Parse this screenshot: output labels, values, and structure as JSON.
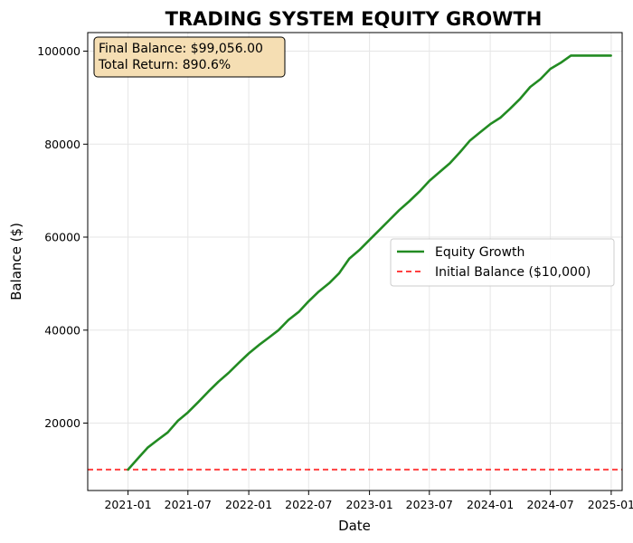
{
  "chart_data": {
    "type": "line",
    "title": "TRADING SYSTEM EQUITY GROWTH",
    "xlabel": "Date",
    "ylabel": "Balance ($)",
    "xlim": [
      "2020-09-01",
      "2025-02-03"
    ],
    "ylim": [
      5500,
      104000
    ],
    "grid": true,
    "x_ticks": [
      "2021-01",
      "2021-07",
      "2022-01",
      "2022-07",
      "2023-01",
      "2023-07",
      "2024-01",
      "2024-07",
      "2025-01"
    ],
    "y_ticks": [
      20000,
      40000,
      60000,
      80000,
      100000
    ],
    "legend_position": "center-right",
    "annotation": {
      "line1": "Final Balance: $99,056.00",
      "line2": "Total Return: 890.6%"
    },
    "series": [
      {
        "name": "Equity Growth",
        "color": "#228B22",
        "style": "solid",
        "x": [
          "2021-01-01",
          "2021-02-01",
          "2021-03-01",
          "2021-04-01",
          "2021-05-01",
          "2021-06-01",
          "2021-07-01",
          "2021-08-01",
          "2021-09-01",
          "2021-10-01",
          "2021-11-01",
          "2021-12-01",
          "2022-01-01",
          "2022-02-01",
          "2022-03-01",
          "2022-04-01",
          "2022-05-01",
          "2022-06-01",
          "2022-07-01",
          "2022-08-01",
          "2022-09-01",
          "2022-10-01",
          "2022-11-01",
          "2022-12-01",
          "2023-01-01",
          "2023-02-01",
          "2023-03-01",
          "2023-04-01",
          "2023-05-01",
          "2023-06-01",
          "2023-07-01",
          "2023-08-01",
          "2023-09-01",
          "2023-10-01",
          "2023-11-01",
          "2023-12-01",
          "2024-01-01",
          "2024-02-01",
          "2024-03-01",
          "2024-04-01",
          "2024-05-01",
          "2024-06-01",
          "2024-07-01",
          "2024-08-01",
          "2024-09-01",
          "2024-10-01",
          "2024-11-01",
          "2024-12-01",
          "2024-12-31"
        ],
        "values": [
          10000,
          12500,
          14700,
          16400,
          18000,
          20500,
          22300,
          24500,
          26800,
          28900,
          30800,
          32900,
          35000,
          36800,
          38300,
          40000,
          42200,
          43900,
          46200,
          48300,
          50100,
          52200,
          55400,
          57200,
          59400,
          61600,
          63600,
          65800,
          67700,
          69800,
          72100,
          74000,
          75900,
          78200,
          80800,
          82500,
          84300,
          85700,
          87600,
          89800,
          92300,
          94000,
          96200,
          97500,
          99056,
          99056,
          99056,
          99056,
          99056
        ]
      },
      {
        "name": "Initial Balance ($10,000)",
        "color": "#FF0000",
        "style": "dashed",
        "y": 10000
      }
    ]
  }
}
